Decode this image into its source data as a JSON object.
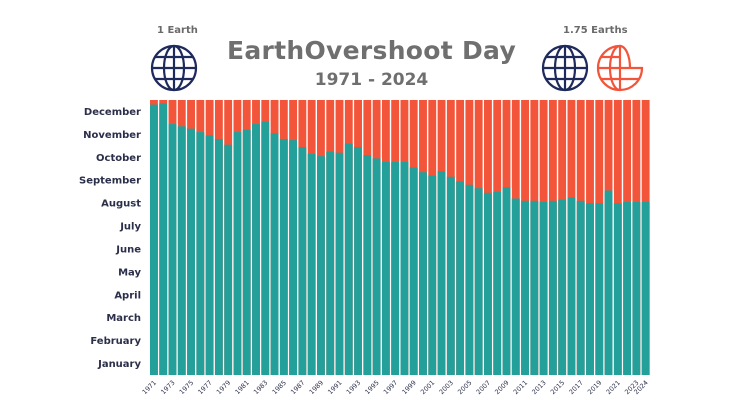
{
  "header": {
    "title": "EarthOvershoot Day",
    "subtitle": "1971 - 2024",
    "left_globe_label": "1 Earth",
    "right_globe_label": "1.75 Earths"
  },
  "colors": {
    "used_before_overshoot": "#24a09b",
    "after_overshoot": "#f2553a",
    "globe_navy": "#1f2a5c",
    "globe_partial": "#f2553a",
    "text": "#2b2f4a"
  },
  "chart_data": {
    "type": "bar",
    "title": "EarthOvershoot Day",
    "subtitle": "1971 - 2024",
    "y_unit": "month of year (0 = start of January, 12 = end of December)",
    "ylim": [
      0,
      12
    ],
    "y_tick_labels": [
      "January",
      "February",
      "March",
      "April",
      "May",
      "June",
      "July",
      "August",
      "September",
      "October",
      "November",
      "December"
    ],
    "x_tick_labels": [
      "1971",
      "1973",
      "1975",
      "1977",
      "1979",
      "1981",
      "1983",
      "1985",
      "1987",
      "1989",
      "1991",
      "1993",
      "1995",
      "1997",
      "1999",
      "2001",
      "2003",
      "2005",
      "2007",
      "2009",
      "2011",
      "2013",
      "2015",
      "2017",
      "2019",
      "2021",
      "2023",
      "2024"
    ],
    "categories": [
      1971,
      1972,
      1973,
      1974,
      1975,
      1976,
      1977,
      1978,
      1979,
      1980,
      1981,
      1982,
      1983,
      1984,
      1985,
      1986,
      1987,
      1988,
      1989,
      1990,
      1991,
      1992,
      1993,
      1994,
      1995,
      1996,
      1997,
      1998,
      1999,
      2000,
      2001,
      2002,
      2003,
      2004,
      2005,
      2006,
      2007,
      2008,
      2009,
      2010,
      2011,
      2012,
      2013,
      2014,
      2015,
      2016,
      2017,
      2018,
      2019,
      2020,
      2021,
      2022,
      2023,
      2024
    ],
    "values": [
      11.8,
      11.85,
      10.95,
      10.85,
      10.75,
      10.6,
      10.45,
      10.3,
      10.05,
      10.6,
      10.7,
      10.95,
      11.05,
      10.55,
      10.3,
      10.25,
      9.95,
      9.65,
      9.55,
      9.75,
      9.7,
      10.1,
      9.95,
      9.6,
      9.45,
      9.3,
      9.3,
      9.3,
      9.05,
      8.85,
      8.7,
      8.9,
      8.65,
      8.45,
      8.3,
      8.15,
      7.95,
      8.0,
      8.2,
      7.7,
      7.6,
      7.6,
      7.55,
      7.6,
      7.65,
      7.75,
      7.6,
      7.5,
      7.5,
      8.05,
      7.5,
      7.55,
      7.55,
      7.55
    ],
    "grid": false,
    "legend": "globes top-left and top-right"
  }
}
